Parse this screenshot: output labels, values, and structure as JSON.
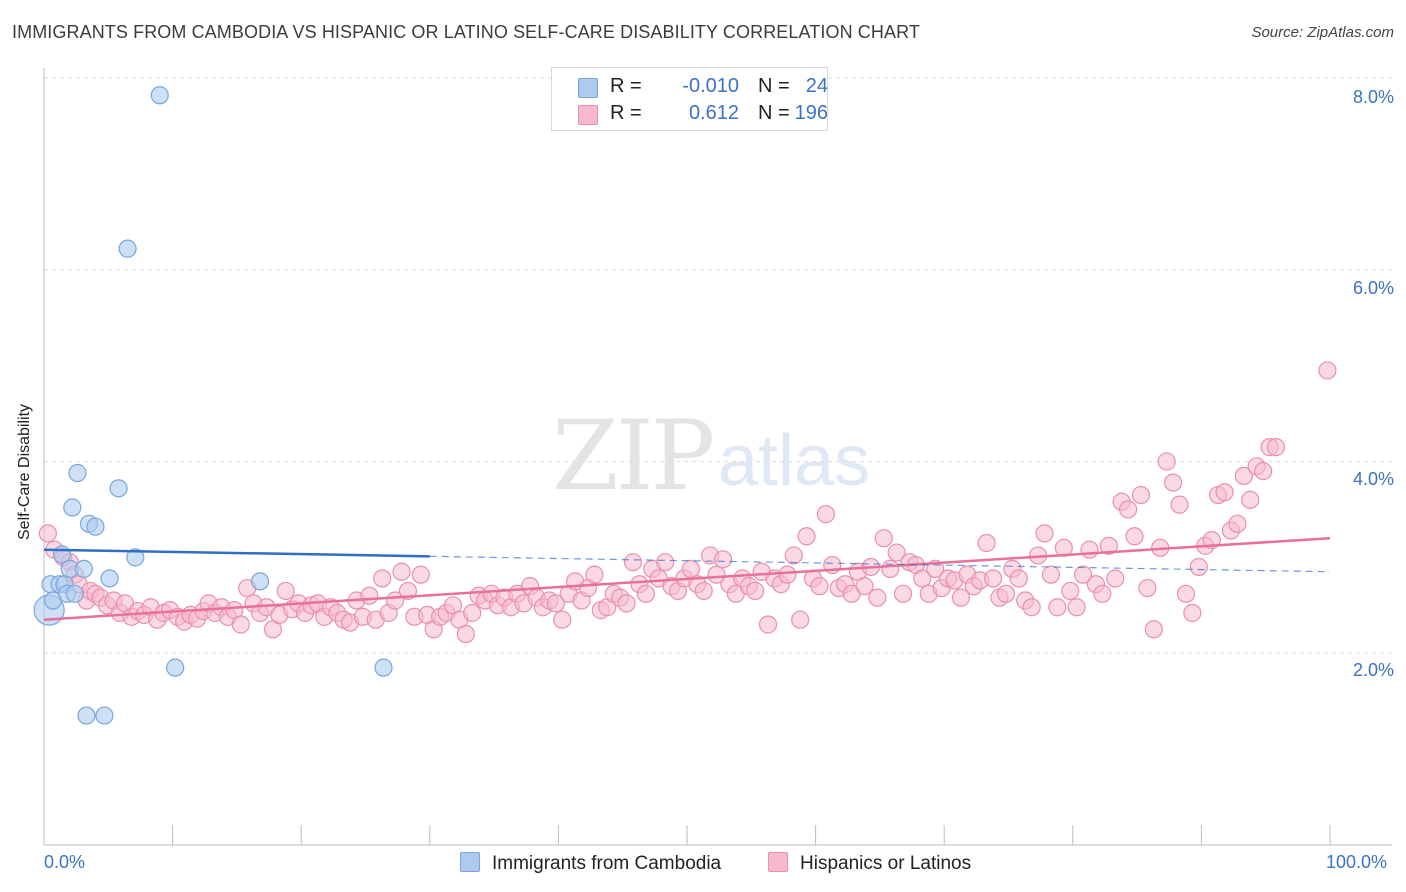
{
  "title": "IMMIGRANTS FROM CAMBODIA VS HISPANIC OR LATINO SELF-CARE DISABILITY CORRELATION CHART",
  "source": "Source: ZipAtlas.com",
  "watermark": {
    "zip": "ZIP",
    "atlas": "atlas"
  },
  "legend": {
    "rows": [
      {
        "r_label": "R =",
        "r_value": "-0.010",
        "n_label": "N =",
        "n_value": "24"
      },
      {
        "r_label": "R =",
        "r_value": "0.612",
        "n_label": "N =",
        "n_value": "196"
      }
    ]
  },
  "colors": {
    "blue_fill": "#aecbef",
    "blue_stroke": "#7aa6dc",
    "blue_line": "#2f6fc6",
    "pink_fill": "#f6b9cd",
    "pink_stroke": "#ea8fae",
    "pink_line": "#e8709a",
    "axis_label": "#3b73c4",
    "grid": "#dedede"
  },
  "chart_data": {
    "type": "scatter",
    "title": "IMMIGRANTS FROM CAMBODIA VS HISPANIC OR LATINO SELF-CARE DISABILITY CORRELATION CHART",
    "xlabel": "",
    "ylabel": "Self-Care Disability",
    "xlim": [
      0,
      100
    ],
    "ylim": [
      0,
      8.0
    ],
    "x_tick_labels": [
      "0.0%",
      "100.0%"
    ],
    "y_ticks": [
      2.0,
      4.0,
      6.0,
      8.0
    ],
    "y_tick_labels": [
      "2.0%",
      "4.0%",
      "6.0%",
      "8.0%"
    ],
    "grid": true,
    "legend_placement": "top-center",
    "series": [
      {
        "name": "Immigrants from Cambodia",
        "color": "#aecbef",
        "trend": {
          "x0": 0,
          "y0": 3.08,
          "x1": 100,
          "y1": 2.85,
          "solid_until": 30
        },
        "points": [
          [
            0.4,
            2.45
          ],
          [
            0.5,
            2.72
          ],
          [
            0.7,
            2.55
          ],
          [
            1.2,
            2.72
          ],
          [
            1.4,
            3.03
          ],
          [
            1.6,
            2.72
          ],
          [
            1.8,
            2.62
          ],
          [
            2.0,
            2.88
          ],
          [
            2.2,
            3.52
          ],
          [
            2.4,
            2.62
          ],
          [
            2.6,
            3.88
          ],
          [
            3.1,
            2.88
          ],
          [
            3.3,
            1.35
          ],
          [
            3.5,
            3.35
          ],
          [
            4.0,
            3.32
          ],
          [
            4.7,
            1.35
          ],
          [
            5.1,
            2.78
          ],
          [
            5.8,
            3.72
          ],
          [
            6.5,
            6.22
          ],
          [
            7.1,
            3.0
          ],
          [
            9.0,
            7.82
          ],
          [
            10.2,
            1.85
          ],
          [
            16.8,
            2.75
          ],
          [
            26.4,
            1.85
          ]
        ]
      },
      {
        "name": "Hispanics or Latinos",
        "color": "#f6b9cd",
        "trend": {
          "x0": 0,
          "y0": 2.35,
          "x1": 100,
          "y1": 3.2
        },
        "points": [
          [
            0.3,
            3.25
          ],
          [
            0.8,
            3.08
          ],
          [
            1.5,
            3.0
          ],
          [
            2.0,
            2.95
          ],
          [
            2.4,
            2.82
          ],
          [
            2.7,
            2.72
          ],
          [
            3.3,
            2.55
          ],
          [
            3.6,
            2.65
          ],
          [
            4.0,
            2.62
          ],
          [
            4.4,
            2.58
          ],
          [
            4.9,
            2.5
          ],
          [
            5.4,
            2.55
          ],
          [
            5.9,
            2.42
          ],
          [
            6.3,
            2.52
          ],
          [
            6.8,
            2.38
          ],
          [
            7.3,
            2.44
          ],
          [
            7.8,
            2.4
          ],
          [
            8.3,
            2.48
          ],
          [
            8.8,
            2.35
          ],
          [
            9.3,
            2.42
          ],
          [
            9.8,
            2.45
          ],
          [
            10.4,
            2.38
          ],
          [
            10.9,
            2.33
          ],
          [
            11.4,
            2.4
          ],
          [
            11.9,
            2.36
          ],
          [
            12.4,
            2.44
          ],
          [
            12.8,
            2.52
          ],
          [
            13.3,
            2.42
          ],
          [
            13.8,
            2.48
          ],
          [
            14.3,
            2.38
          ],
          [
            14.8,
            2.45
          ],
          [
            15.3,
            2.3
          ],
          [
            15.8,
            2.68
          ],
          [
            16.3,
            2.52
          ],
          [
            16.8,
            2.42
          ],
          [
            17.3,
            2.48
          ],
          [
            17.8,
            2.25
          ],
          [
            18.3,
            2.4
          ],
          [
            18.8,
            2.65
          ],
          [
            19.3,
            2.46
          ],
          [
            19.8,
            2.52
          ],
          [
            20.3,
            2.42
          ],
          [
            20.8,
            2.5
          ],
          [
            21.3,
            2.52
          ],
          [
            21.8,
            2.38
          ],
          [
            22.3,
            2.48
          ],
          [
            22.8,
            2.42
          ],
          [
            23.3,
            2.35
          ],
          [
            23.8,
            2.32
          ],
          [
            24.3,
            2.55
          ],
          [
            24.8,
            2.38
          ],
          [
            25.3,
            2.6
          ],
          [
            25.8,
            2.35
          ],
          [
            26.3,
            2.78
          ],
          [
            26.8,
            2.42
          ],
          [
            27.3,
            2.55
          ],
          [
            27.8,
            2.85
          ],
          [
            28.3,
            2.65
          ],
          [
            28.8,
            2.38
          ],
          [
            29.3,
            2.82
          ],
          [
            29.8,
            2.4
          ],
          [
            30.3,
            2.25
          ],
          [
            30.8,
            2.38
          ],
          [
            31.3,
            2.42
          ],
          [
            31.8,
            2.5
          ],
          [
            32.3,
            2.35
          ],
          [
            32.8,
            2.2
          ],
          [
            33.3,
            2.42
          ],
          [
            33.8,
            2.6
          ],
          [
            34.3,
            2.55
          ],
          [
            34.8,
            2.62
          ],
          [
            35.3,
            2.5
          ],
          [
            35.8,
            2.58
          ],
          [
            36.3,
            2.48
          ],
          [
            36.8,
            2.62
          ],
          [
            37.3,
            2.52
          ],
          [
            37.8,
            2.7
          ],
          [
            38.3,
            2.58
          ],
          [
            38.8,
            2.48
          ],
          [
            39.3,
            2.55
          ],
          [
            39.8,
            2.52
          ],
          [
            40.3,
            2.35
          ],
          [
            40.8,
            2.62
          ],
          [
            41.3,
            2.75
          ],
          [
            41.8,
            2.55
          ],
          [
            42.3,
            2.68
          ],
          [
            42.8,
            2.82
          ],
          [
            43.3,
            2.45
          ],
          [
            43.8,
            2.48
          ],
          [
            44.3,
            2.62
          ],
          [
            44.8,
            2.58
          ],
          [
            45.3,
            2.52
          ],
          [
            45.8,
            2.95
          ],
          [
            46.3,
            2.72
          ],
          [
            46.8,
            2.62
          ],
          [
            47.3,
            2.88
          ],
          [
            47.8,
            2.78
          ],
          [
            48.3,
            2.95
          ],
          [
            48.8,
            2.7
          ],
          [
            49.3,
            2.65
          ],
          [
            49.8,
            2.78
          ],
          [
            50.3,
            2.88
          ],
          [
            50.8,
            2.72
          ],
          [
            51.3,
            2.65
          ],
          [
            51.8,
            3.02
          ],
          [
            52.3,
            2.82
          ],
          [
            52.8,
            2.98
          ],
          [
            53.3,
            2.72
          ],
          [
            53.8,
            2.62
          ],
          [
            54.3,
            2.78
          ],
          [
            54.8,
            2.7
          ],
          [
            55.3,
            2.65
          ],
          [
            55.8,
            2.85
          ],
          [
            56.3,
            2.3
          ],
          [
            56.8,
            2.78
          ],
          [
            57.3,
            2.72
          ],
          [
            57.8,
            2.82
          ],
          [
            58.3,
            3.02
          ],
          [
            58.8,
            2.35
          ],
          [
            59.3,
            3.22
          ],
          [
            59.8,
            2.78
          ],
          [
            60.3,
            2.7
          ],
          [
            60.8,
            3.45
          ],
          [
            61.3,
            2.92
          ],
          [
            61.8,
            2.68
          ],
          [
            62.3,
            2.72
          ],
          [
            62.8,
            2.62
          ],
          [
            63.3,
            2.85
          ],
          [
            63.8,
            2.7
          ],
          [
            64.3,
            2.9
          ],
          [
            64.8,
            2.58
          ],
          [
            65.3,
            3.2
          ],
          [
            65.8,
            2.88
          ],
          [
            66.3,
            3.05
          ],
          [
            66.8,
            2.62
          ],
          [
            67.3,
            2.95
          ],
          [
            67.8,
            2.92
          ],
          [
            68.3,
            2.78
          ],
          [
            68.8,
            2.62
          ],
          [
            69.3,
            2.88
          ],
          [
            69.8,
            2.68
          ],
          [
            70.3,
            2.78
          ],
          [
            70.8,
            2.76
          ],
          [
            71.3,
            2.58
          ],
          [
            71.8,
            2.82
          ],
          [
            72.3,
            2.7
          ],
          [
            72.8,
            2.76
          ],
          [
            73.3,
            3.15
          ],
          [
            73.8,
            2.78
          ],
          [
            74.3,
            2.58
          ],
          [
            74.8,
            2.62
          ],
          [
            75.3,
            2.88
          ],
          [
            75.8,
            2.78
          ],
          [
            76.3,
            2.55
          ],
          [
            76.8,
            2.48
          ],
          [
            77.3,
            3.02
          ],
          [
            77.8,
            3.25
          ],
          [
            78.3,
            2.82
          ],
          [
            78.8,
            2.48
          ],
          [
            79.3,
            3.1
          ],
          [
            79.8,
            2.65
          ],
          [
            80.3,
            2.48
          ],
          [
            80.8,
            2.82
          ],
          [
            81.3,
            3.08
          ],
          [
            81.8,
            2.72
          ],
          [
            82.3,
            2.62
          ],
          [
            82.8,
            3.12
          ],
          [
            83.3,
            2.78
          ],
          [
            83.8,
            3.58
          ],
          [
            84.3,
            3.5
          ],
          [
            84.8,
            3.22
          ],
          [
            85.3,
            3.65
          ],
          [
            85.8,
            2.68
          ],
          [
            86.3,
            2.25
          ],
          [
            86.8,
            3.1
          ],
          [
            87.3,
            4.0
          ],
          [
            87.8,
            3.78
          ],
          [
            88.3,
            3.55
          ],
          [
            88.8,
            2.62
          ],
          [
            89.3,
            2.42
          ],
          [
            89.8,
            2.9
          ],
          [
            90.3,
            3.12
          ],
          [
            90.8,
            3.18
          ],
          [
            91.3,
            3.65
          ],
          [
            91.8,
            3.68
          ],
          [
            92.3,
            3.28
          ],
          [
            92.8,
            3.35
          ],
          [
            93.3,
            3.85
          ],
          [
            93.8,
            3.6
          ],
          [
            94.3,
            3.95
          ],
          [
            94.8,
            3.9
          ],
          [
            95.3,
            4.15
          ],
          [
            95.8,
            4.15
          ],
          [
            99.8,
            4.95
          ]
        ]
      }
    ]
  },
  "bottom_legend": [
    {
      "label": "Immigrants from Cambodia"
    },
    {
      "label": "Hispanics or Latinos"
    }
  ]
}
